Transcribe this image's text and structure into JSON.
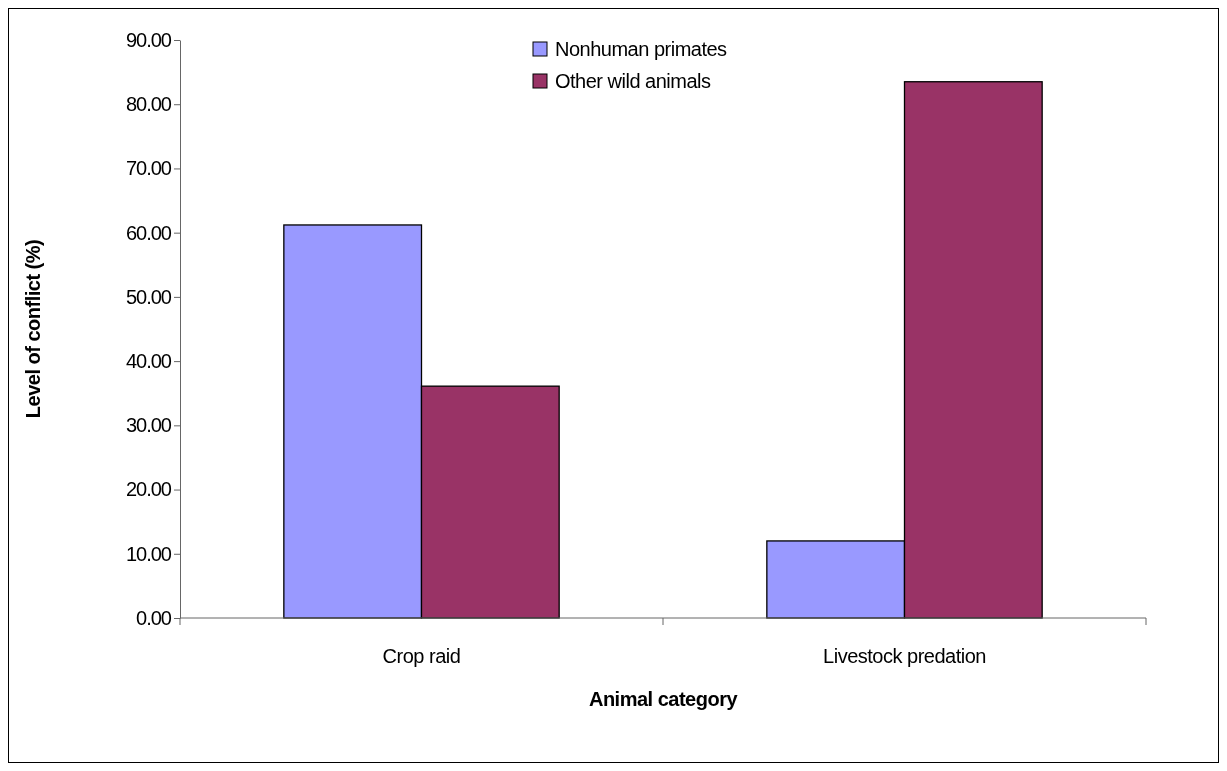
{
  "chart_data": {
    "type": "bar",
    "xlabel": "Animal category",
    "ylabel": "Level of conflict (%)",
    "categories": [
      "Crop raid",
      "Livestock predation"
    ],
    "series": [
      {
        "name": "Nonhuman primates",
        "color": "#9999ff",
        "values": [
          61.2,
          12.0
        ]
      },
      {
        "name": "Other wild animals",
        "color": "#993366",
        "values": [
          36.1,
          83.5
        ]
      }
    ],
    "ylim": [
      0,
      90
    ],
    "yticks": [
      {
        "value": 0,
        "label": "0.00"
      },
      {
        "value": 10,
        "label": "10.00"
      },
      {
        "value": 20,
        "label": "20.00"
      },
      {
        "value": 30,
        "label": "30.00"
      },
      {
        "value": 40,
        "label": "40.00"
      },
      {
        "value": 50,
        "label": "50.00"
      },
      {
        "value": 60,
        "label": "60.00"
      },
      {
        "value": 70,
        "label": "70.00"
      },
      {
        "value": 80,
        "label": "80.00"
      },
      {
        "value": 90,
        "label": "90.00"
      }
    ],
    "grid": false,
    "legend": "top"
  }
}
